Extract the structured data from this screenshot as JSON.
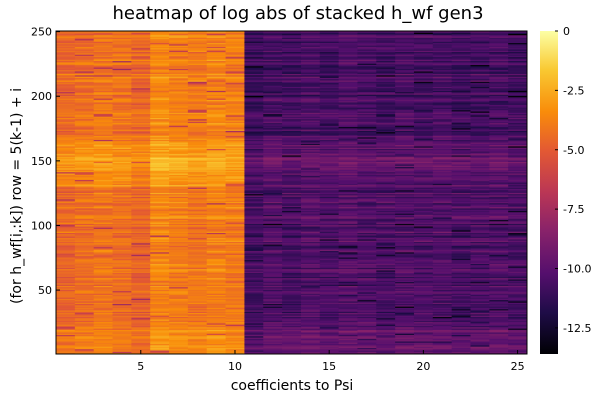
{
  "chart_data": {
    "type": "heatmap",
    "title": "heatmap of log abs of stacked h_wf gen3",
    "xlabel": "coefficients to Psi",
    "ylabel": "(for h_wf[i,:k]) row = 5(k-1) + i",
    "xlim": [
      0.5,
      25.5
    ],
    "ylim": [
      0.5,
      250.5
    ],
    "x_ticks": [
      5,
      10,
      15,
      20,
      25
    ],
    "y_ticks": [
      50,
      100,
      150,
      200,
      250
    ],
    "x_tick_labels": [
      "5",
      "10",
      "15",
      "20",
      "25"
    ],
    "y_tick_labels": [
      "50",
      "100",
      "150",
      "200",
      "250"
    ],
    "n_cols": 25,
    "n_rows": 250,
    "colormap": "inferno",
    "clim": [
      -13.6,
      0
    ],
    "colorbar_ticks": [
      0,
      -2.5,
      -5.0,
      -7.5,
      -10.0,
      -12.5
    ],
    "colorbar_tick_labels": [
      "0",
      "-2.5",
      "-5.0",
      "-7.5",
      "-10.0",
      "-12.5"
    ],
    "column_mean_values": [
      -4.2,
      -4.0,
      -3.8,
      -4.0,
      -4.3,
      -3.2,
      -3.5,
      -3.7,
      -3.4,
      -3.6,
      -10.6,
      -10.2,
      -10.4,
      -10.1,
      -10.3,
      -10.0,
      -10.2,
      -10.4,
      -10.1,
      -10.3,
      -10.2,
      -10.4,
      -10.3,
      -10.2,
      -10.4
    ],
    "row_band_values": [
      {
        "rows": [
          1,
          20
        ],
        "left_value": -3.6,
        "right_value": -9.6
      },
      {
        "rows": [
          21,
          130
        ],
        "left_value": -4.1,
        "right_value": -10.3
      },
      {
        "rows": [
          131,
          165
        ],
        "left_value": -3.0,
        "right_value": -9.8
      },
      {
        "rows": [
          166,
          250
        ],
        "left_value": -4.0,
        "right_value": -10.6
      }
    ],
    "grid": false,
    "legend": "colorbar-right"
  }
}
